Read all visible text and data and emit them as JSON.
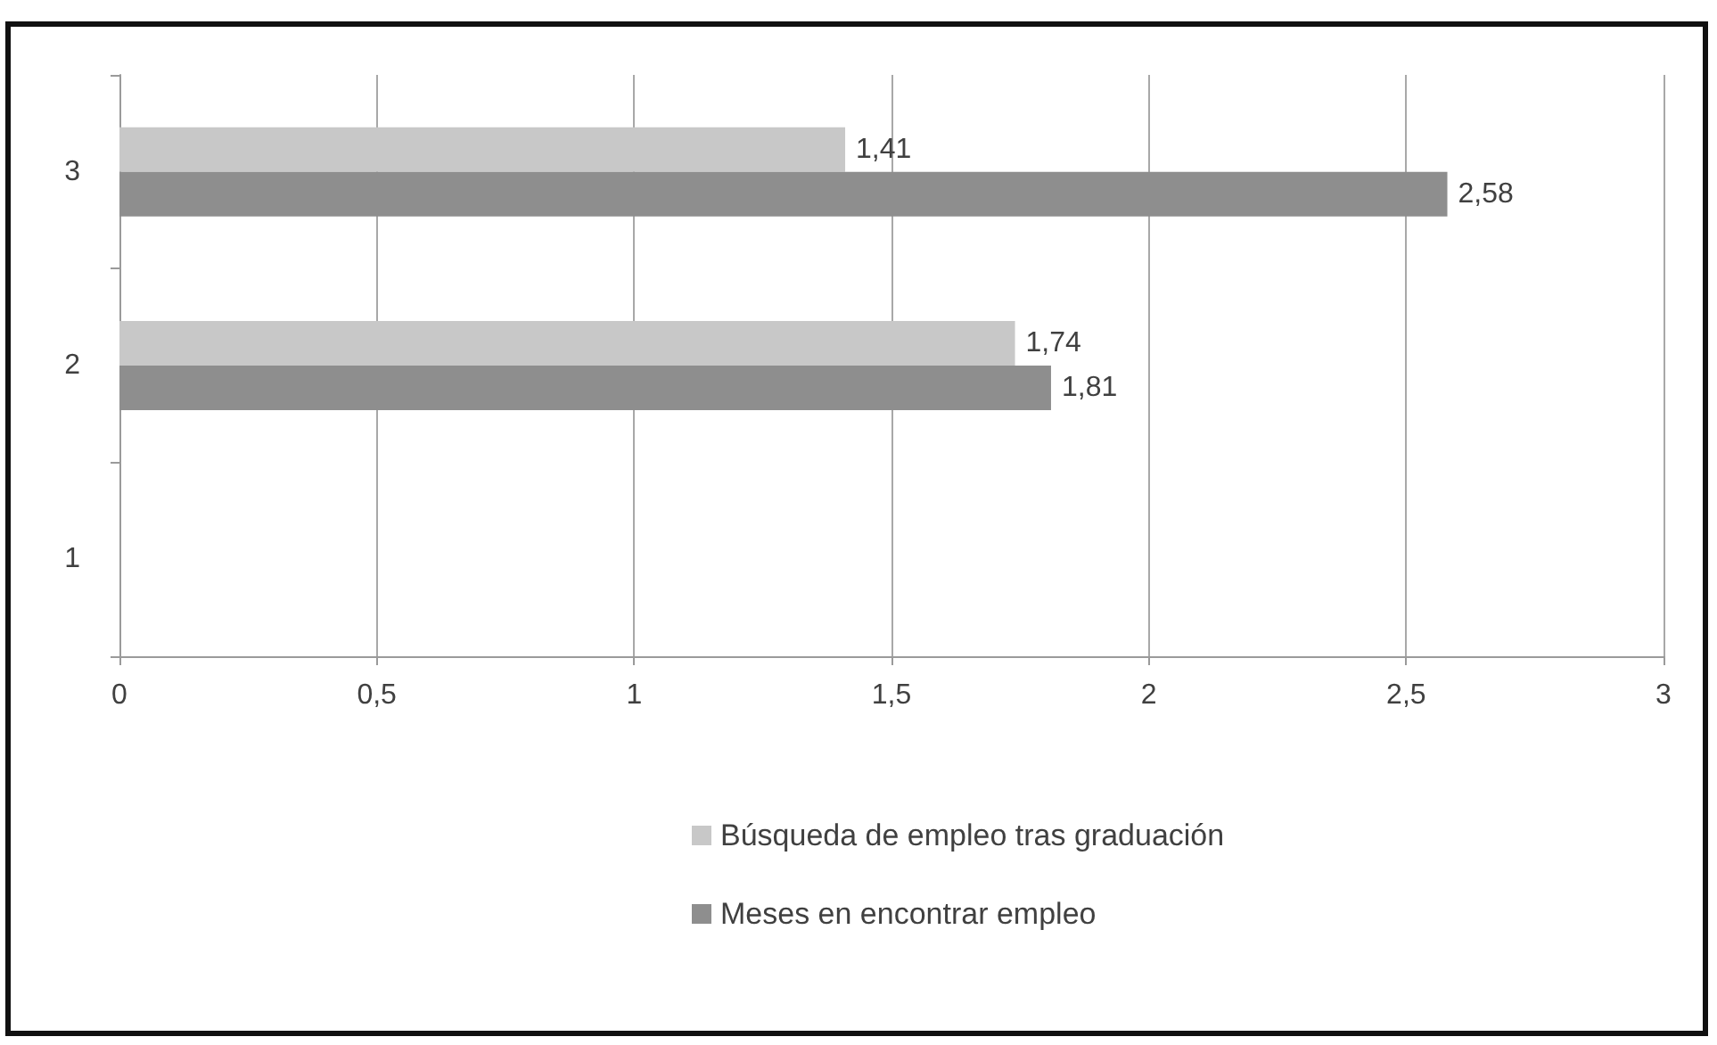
{
  "chart_data": {
    "type": "bar",
    "orientation": "horizontal",
    "categories": [
      "3",
      "2",
      "1"
    ],
    "series": [
      {
        "name": "Búsqueda de empleo tras graduación",
        "color": "#c8c8c8",
        "values": [
          1.41,
          1.74,
          null
        ],
        "value_labels": [
          "1,41",
          "1,74",
          null
        ]
      },
      {
        "name": "Meses en encontrar empleo",
        "color": "#8e8e8e",
        "values": [
          2.58,
          1.81,
          null
        ],
        "value_labels": [
          "2,58",
          "1,81",
          null
        ]
      }
    ],
    "xlim": [
      0,
      3
    ],
    "xticks": [
      0,
      {
        "value": 0.5,
        "label": "0,5"
      },
      1,
      {
        "value": 1.5,
        "label": "1,5"
      },
      2,
      {
        "value": 2.5,
        "label": "2,5"
      },
      3
    ],
    "grid": "x",
    "legend": "bottom"
  }
}
